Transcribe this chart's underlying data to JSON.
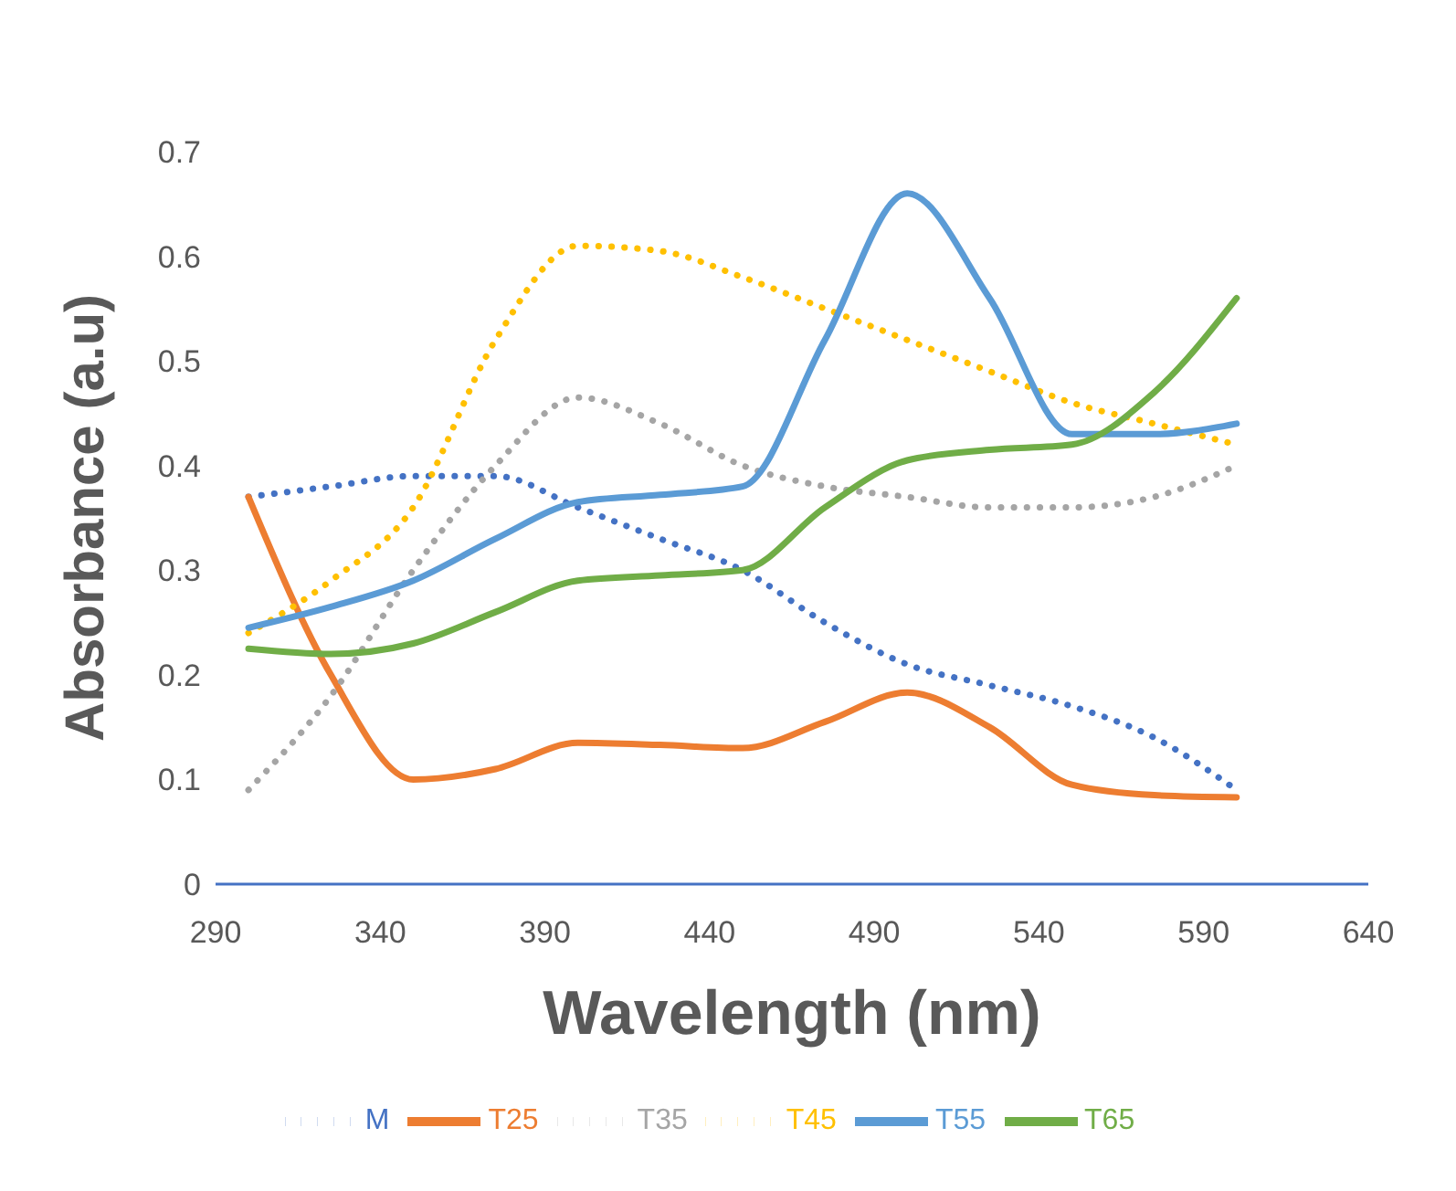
{
  "chart_data": {
    "type": "line",
    "xlabel": "Wavelength (nm)",
    "ylabel": "Absorbance (a.u)",
    "x": [
      300,
      325,
      350,
      375,
      400,
      425,
      450,
      475,
      500,
      525,
      550,
      575,
      600
    ],
    "xlim": [
      290,
      640
    ],
    "xticks": [
      290,
      340,
      390,
      440,
      490,
      540,
      590,
      640
    ],
    "ylim": [
      0,
      0.7
    ],
    "yticks": [
      0,
      0.1,
      0.2,
      0.3,
      0.4,
      0.5,
      0.6,
      0.7
    ],
    "grid": false,
    "legend": "bottom",
    "marker": "none",
    "series": [
      {
        "name": "M",
        "color": "#4472c4",
        "line_style": "dotted",
        "values": [
          0.37,
          0.38,
          0.39,
          0.39,
          0.36,
          0.33,
          0.3,
          0.25,
          0.21,
          0.19,
          0.17,
          0.14,
          0.09
        ]
      },
      {
        "name": "T25",
        "color": "#ed7d31",
        "line_style": "solid",
        "values": [
          0.37,
          0.2,
          0.1,
          0.11,
          0.135,
          0.133,
          0.13,
          0.155,
          0.183,
          0.15,
          0.095,
          0.085,
          0.083
        ]
      },
      {
        "name": "T35",
        "color": "#a5a5a5",
        "line_style": "dotted",
        "values": [
          0.09,
          0.18,
          0.3,
          0.4,
          0.465,
          0.44,
          0.4,
          0.38,
          0.37,
          0.36,
          0.36,
          0.37,
          0.4
        ]
      },
      {
        "name": "T45",
        "color": "#ffc000",
        "line_style": "dotted",
        "values": [
          0.24,
          0.29,
          0.36,
          0.52,
          0.61,
          0.605,
          0.58,
          0.55,
          0.52,
          0.49,
          0.46,
          0.44,
          0.42
        ]
      },
      {
        "name": "T55",
        "color": "#5b9bd5",
        "line_style": "solid",
        "values": [
          0.245,
          0.265,
          0.29,
          0.33,
          0.365,
          0.372,
          0.38,
          0.52,
          0.66,
          0.56,
          0.43,
          0.43,
          0.44
        ]
      },
      {
        "name": "T65",
        "color": "#70ad47",
        "line_style": "solid",
        "values": [
          0.225,
          0.22,
          0.23,
          0.26,
          0.29,
          0.295,
          0.3,
          0.36,
          0.405,
          0.415,
          0.42,
          0.47,
          0.56
        ]
      }
    ]
  }
}
